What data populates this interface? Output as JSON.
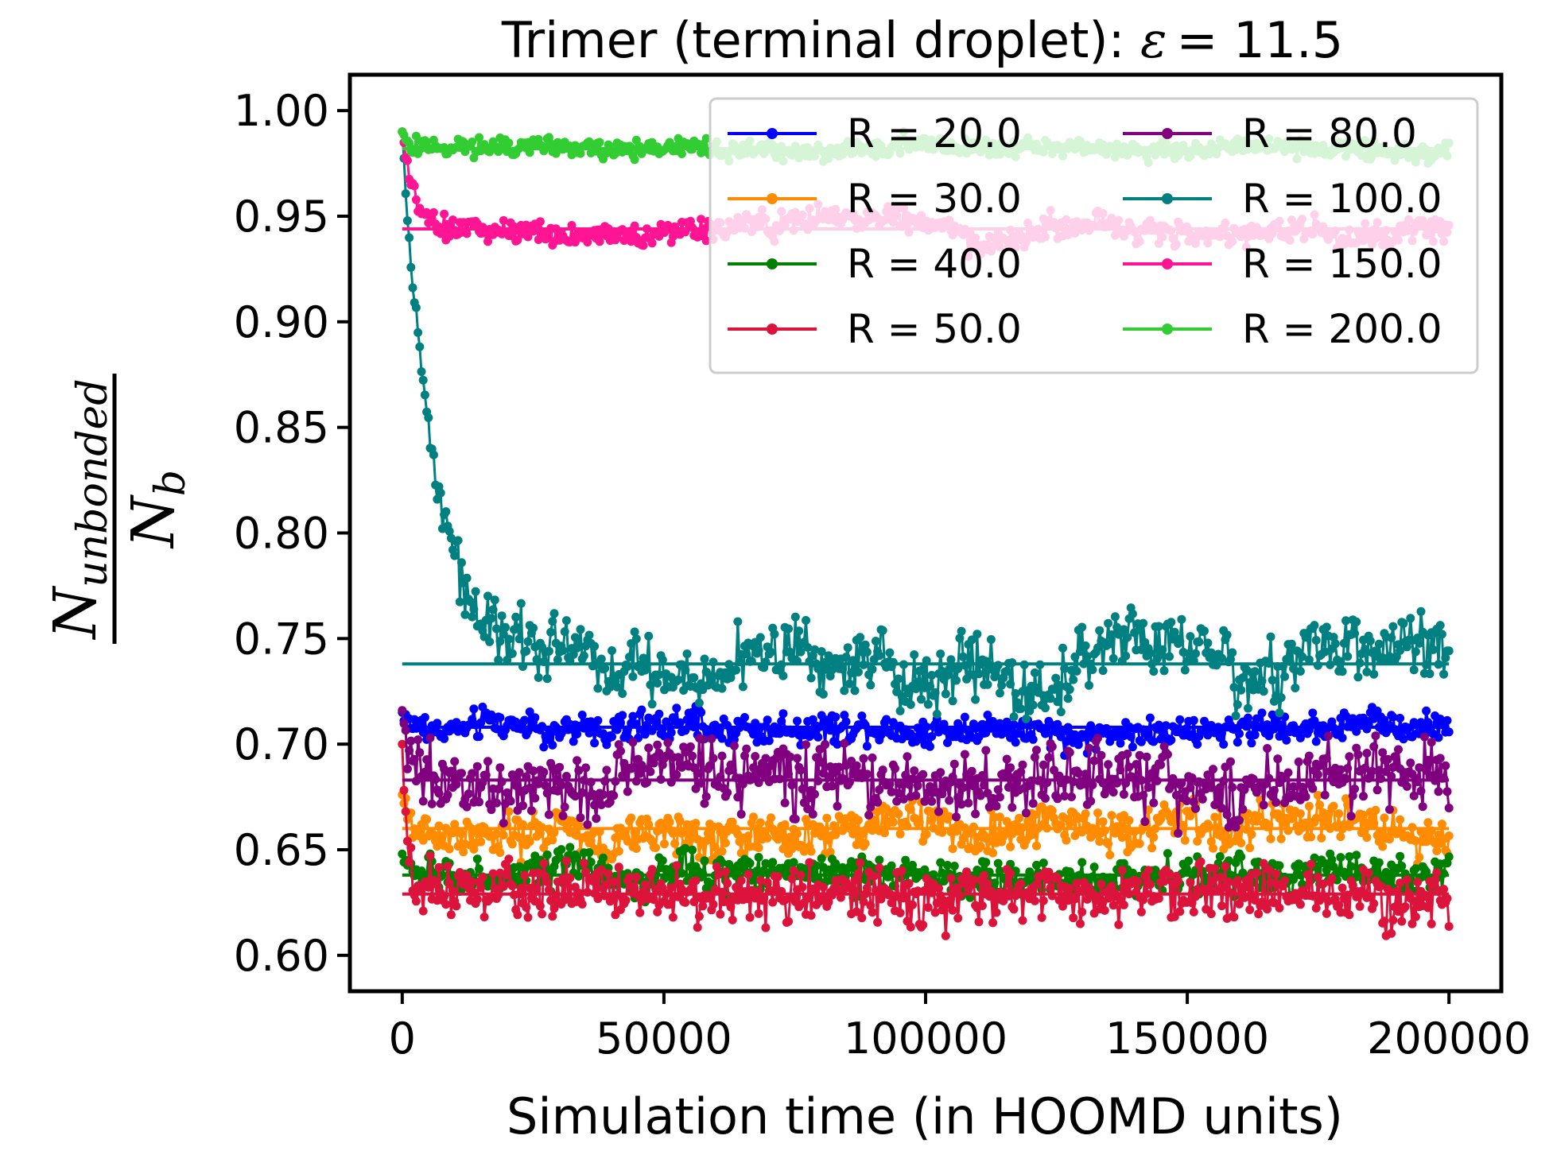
{
  "chart_data": {
    "type": "line",
    "title_prefix": "Trimer (terminal droplet): ",
    "title_symbol": "ε",
    "title_value": "= 11.5",
    "xlabel": "Simulation time (in HOOMD units)",
    "ylabel_numerator": "N",
    "ylabel_numerator_sub": "unbonded",
    "ylabel_denominator": "N",
    "ylabel_denominator_sub": "b",
    "xlim": [
      -10000,
      210000
    ],
    "ylim": [
      0.583,
      1.017
    ],
    "x_ticks": [
      0,
      50000,
      100000,
      150000,
      200000
    ],
    "y_ticks": [
      "0.60",
      "0.65",
      "0.70",
      "0.75",
      "0.80",
      "0.85",
      "0.90",
      "0.95",
      "1.00"
    ],
    "x_start": 0,
    "x_end": 200000,
    "n_points": 600,
    "legend_position": "top-right",
    "legend_columns": 2,
    "series": [
      {
        "label": "R = 20.0",
        "color": "#0000ff",
        "start": 0.715,
        "mean": 0.708,
        "noise": 0.005,
        "drift": 0.002,
        "tau": 0.005
      },
      {
        "label": "R = 30.0",
        "color": "#ff8c00",
        "start": 0.676,
        "mean": 0.66,
        "noise": 0.007,
        "drift": 0.004,
        "tau": 0.006
      },
      {
        "label": "R = 40.0",
        "color": "#008000",
        "start": 0.648,
        "mean": 0.638,
        "noise": 0.006,
        "drift": 0.002,
        "tau": 0.006
      },
      {
        "label": "R = 50.0",
        "color": "#dc143c",
        "start": 0.7,
        "mean": 0.629,
        "noise": 0.009,
        "drift": 0.002,
        "tau": 0.004
      },
      {
        "label": "R = 80.0",
        "color": "#800080",
        "start": 0.716,
        "mean": 0.683,
        "noise": 0.011,
        "drift": 0.004,
        "tau": 0.008
      },
      {
        "label": "R = 100.0",
        "color": "#008080",
        "start": 0.99,
        "mean": 0.738,
        "noise": 0.01,
        "drift": 0.006,
        "tau": 0.03
      },
      {
        "label": "R = 150.0",
        "color": "#ff1493",
        "start": 0.99,
        "mean": 0.944,
        "noise": 0.004,
        "drift": 0.002,
        "tau": 0.012
      },
      {
        "label": "R = 200.0",
        "color": "#32cd32",
        "start": 0.99,
        "mean": 0.982,
        "noise": 0.003,
        "drift": 0.001,
        "tau": 0.006
      }
    ]
  }
}
